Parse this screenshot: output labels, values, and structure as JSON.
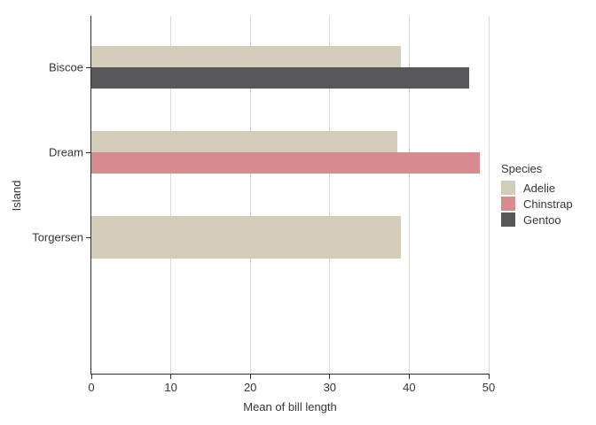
{
  "chart_data": {
    "type": "bar",
    "orientation": "horizontal",
    "xlabel": "Mean of bill length",
    "ylabel": "Island",
    "categories": [
      "Biscoe",
      "Dream",
      "Torgersen"
    ],
    "series": [
      {
        "name": "Adelie",
        "color": "#d3ccb8",
        "values": [
          38.98,
          38.5,
          38.95
        ]
      },
      {
        "name": "Chinstrap",
        "color": "#d98c8f",
        "values": [
          null,
          48.83,
          null
        ]
      },
      {
        "name": "Gentoo",
        "color": "#58585a",
        "values": [
          47.5,
          null,
          null
        ]
      }
    ],
    "xlim": [
      0,
      50
    ],
    "xticks": [
      0,
      10,
      20,
      30,
      40,
      50
    ],
    "grid": "vertical-major-only",
    "grid_color": "#d9d9d9",
    "axis_color": "#2e2e2e",
    "text_color": "#363636",
    "background_color": "#ffffff",
    "legend_title": "Species",
    "legend_position": "right"
  }
}
